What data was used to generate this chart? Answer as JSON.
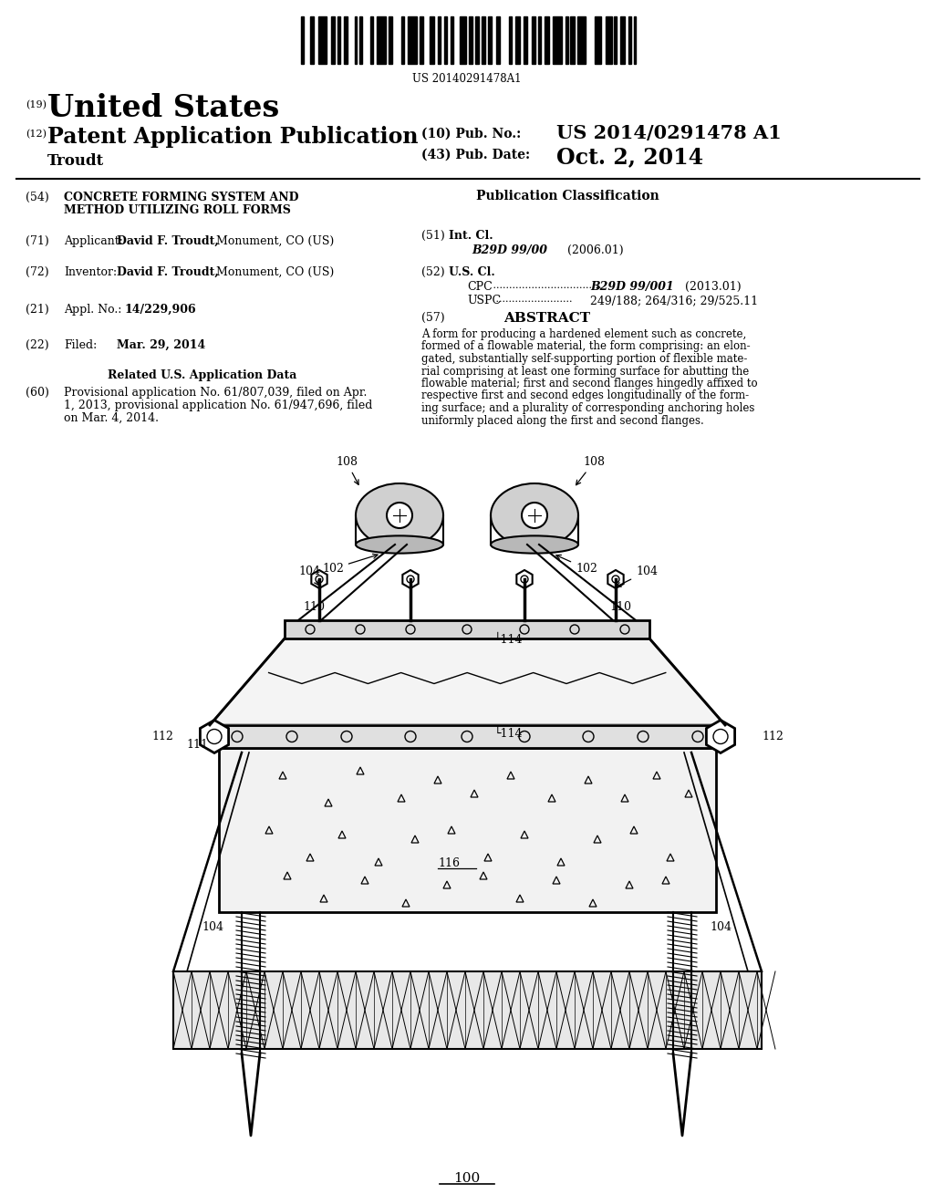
{
  "bg_color": "#ffffff",
  "barcode_text": "US 20140291478A1",
  "title_19": "(19)",
  "title_us": "United States",
  "title_12": "(12)",
  "title_pub": "Patent Application Publication",
  "title_name": "Troudt",
  "pub_no_label": "(10) Pub. No.:",
  "pub_no_value": "US 2014/0291478 A1",
  "pub_date_label": "(43) Pub. Date:",
  "pub_date_value": "Oct. 2, 2014",
  "field54_label": "(54)",
  "field54_line1": "CONCRETE FORMING SYSTEM AND",
  "field54_line2": "METHOD UTILIZING ROLL FORMS",
  "field71_label": "(71)",
  "field72_label": "(72)",
  "field21_label": "(21)",
  "field22_label": "(22)",
  "related_title": "Related U.S. Application Data",
  "field60_label": "(60)",
  "field60_line1": "Provisional application No. 61/807,039, filed on Apr.",
  "field60_line2": "1, 2013, provisional application No. 61/947,696, filed",
  "field60_line3": "on Mar. 4, 2014.",
  "pub_class_title": "Publication Classification",
  "field51_label": "(51)",
  "field52_label": "(52)",
  "field57_label": "(57)",
  "field57_title": "ABSTRACT",
  "abstract_line1": "A form for producing a hardened element such as concrete,",
  "abstract_line2": "formed of a flowable material, the form comprising: an elon-",
  "abstract_line3": "gated, substantially self-supporting portion of flexible mate-",
  "abstract_line4": "rial comprising at least one forming surface for abutting the",
  "abstract_line5": "flowable material; first and second flanges hingedly affixed to",
  "abstract_line6": "respective first and second edges longitudinally of the form-",
  "abstract_line7": "ing surface; and a plurality of corresponding anchoring holes",
  "abstract_line8": "uniformly placed along the first and second flanges.",
  "figure_label": "100"
}
